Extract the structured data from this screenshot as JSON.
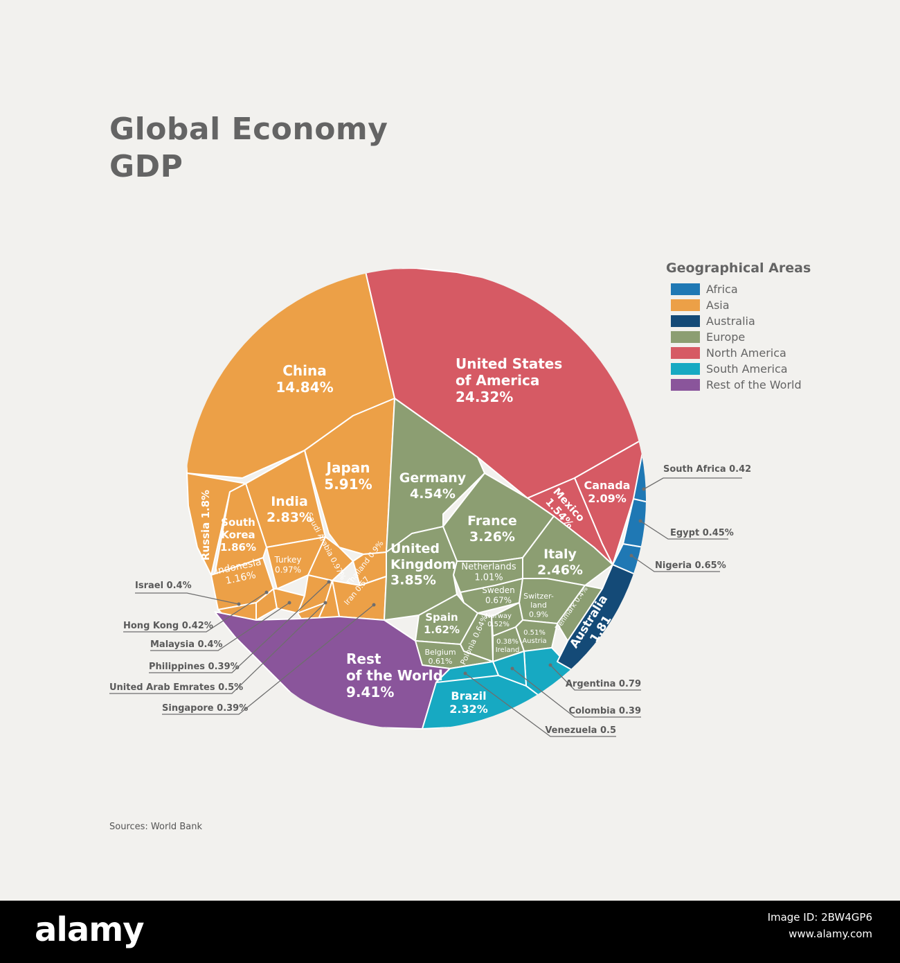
{
  "title": {
    "line1": "Global Economy",
    "line2": "GDP"
  },
  "legend": {
    "title": "Geographical Areas",
    "items": [
      {
        "label": "Africa",
        "color": "#1f78b4"
      },
      {
        "label": "Asia",
        "color": "#eca047"
      },
      {
        "label": "Australia",
        "color": "#144a77"
      },
      {
        "label": "Europe",
        "color": "#8c9e72"
      },
      {
        "label": "North America",
        "color": "#d65a64"
      },
      {
        "label": "South America",
        "color": "#17a9c2"
      },
      {
        "label": "Rest of the World",
        "color": "#8a559b"
      }
    ]
  },
  "source": "Sources: World Bank",
  "footer": {
    "logo": "alamy",
    "image_id": "Image ID: 2BW4GP6",
    "site": "www.alamy.com"
  },
  "chart_data": {
    "type": "voronoi-treemap",
    "title": "Global Economy GDP",
    "unit": "% of world GDP",
    "regions": [
      {
        "region": "North America",
        "countries": [
          {
            "name": "United States of America",
            "label": "United States of America",
            "value_text": "24.32%",
            "value": 24.32
          },
          {
            "name": "Canada",
            "label": "Canada",
            "value_text": "2.09%",
            "value": 2.09
          },
          {
            "name": "Mexico",
            "label": "Mexico",
            "value_text": "1.54%",
            "value": 1.54
          }
        ]
      },
      {
        "region": "Asia",
        "countries": [
          {
            "name": "China",
            "label": "China",
            "value_text": "14.84%",
            "value": 14.84
          },
          {
            "name": "Japan",
            "label": "Japan",
            "value_text": "5.91%",
            "value": 5.91
          },
          {
            "name": "India",
            "label": "India",
            "value_text": "2.83%",
            "value": 2.83
          },
          {
            "name": "South Korea",
            "label": "South Korea",
            "value_text": "1.86%",
            "value": 1.86
          },
          {
            "name": "Russia",
            "label": "Russia",
            "value_text": "1.8%",
            "value": 1.8
          },
          {
            "name": "Indonesia",
            "label": "Indonesia",
            "value_text": "1.16%",
            "value": 1.16
          },
          {
            "name": "Turkey",
            "label": "Turkey",
            "value_text": "0.97%",
            "value": 0.97
          },
          {
            "name": "Saudi Arabia",
            "label": "Saudi Arabia",
            "value_text": "0.97%",
            "value": 0.97
          },
          {
            "name": "Thailand",
            "label": "Thailand",
            "value_text": "0.9%",
            "value": 0.9
          },
          {
            "name": "Iran",
            "label": "Iran",
            "value_text": "0.57",
            "value": 0.57
          },
          {
            "name": "Israel",
            "label": "Israel",
            "value_text": "0.4%",
            "value": 0.4
          },
          {
            "name": "Hong Kong",
            "label": "Hong Kong",
            "value_text": "0.42%",
            "value": 0.42
          },
          {
            "name": "Malaysia",
            "label": "Malaysia",
            "value_text": "0.4%",
            "value": 0.4
          },
          {
            "name": "Philippines",
            "label": "Philippines",
            "value_text": "0.39%",
            "value": 0.39
          },
          {
            "name": "United Arab Emrates",
            "label": "United Arab Emrates",
            "value_text": "0.5%",
            "value": 0.5
          },
          {
            "name": "Singapore",
            "label": "Singapore",
            "value_text": "0.39%",
            "value": 0.39
          }
        ]
      },
      {
        "region": "Europe",
        "countries": [
          {
            "name": "Germany",
            "label": "Germany",
            "value_text": "4.54%",
            "value": 4.54
          },
          {
            "name": "United Kingdom",
            "label": "United Kingdom",
            "value_text": "3.85%",
            "value": 3.85
          },
          {
            "name": "France",
            "label": "France",
            "value_text": "3.26%",
            "value": 3.26
          },
          {
            "name": "Italy",
            "label": "Italy",
            "value_text": "2.46%",
            "value": 2.46
          },
          {
            "name": "Spain",
            "label": "Spain",
            "value_text": "1.62%",
            "value": 1.62
          },
          {
            "name": "Netherlands",
            "label": "Netherlands",
            "value_text": "1.01%",
            "value": 1.01
          },
          {
            "name": "Switzerland",
            "label": "Switzer-land",
            "value_text": "0.9%",
            "value": 0.9
          },
          {
            "name": "Sweden",
            "label": "Sweden",
            "value_text": "0.67%",
            "value": 0.67
          },
          {
            "name": "Polonia",
            "label": "Polonia",
            "value_text": "0.64%",
            "value": 0.64
          },
          {
            "name": "Belgium",
            "label": "Belgium",
            "value_text": "0.61%",
            "value": 0.61
          },
          {
            "name": "Norway",
            "label": "Norway",
            "value_text": "0.52%",
            "value": 0.52
          },
          {
            "name": "Austria",
            "label": "Austria",
            "value_text": "0.51%",
            "value": 0.51
          },
          {
            "name": "Denmark",
            "label": "Denmark",
            "value_text": "0.4%",
            "value": 0.4
          },
          {
            "name": "Ireland",
            "label": "Ireland",
            "value_text": "0.38%",
            "value": 0.38
          }
        ]
      },
      {
        "region": "Rest of the World",
        "countries": [
          {
            "name": "Rest of the World",
            "label": "Rest of the World",
            "value_text": "9.41%",
            "value": 9.41
          }
        ]
      },
      {
        "region": "South America",
        "countries": [
          {
            "name": "Brazil",
            "label": "Brazil",
            "value_text": "2.32%",
            "value": 2.32
          },
          {
            "name": "Argentina",
            "label": "Argentina",
            "value_text": "0.79",
            "value": 0.79
          },
          {
            "name": "Venezuela",
            "label": "Venezuela",
            "value_text": "0.5",
            "value": 0.5
          },
          {
            "name": "Colombia",
            "label": "Colombia",
            "value_text": "0.39",
            "value": 0.39
          }
        ]
      },
      {
        "region": "Australia",
        "countries": [
          {
            "name": "Australia",
            "label": "Australia",
            "value_text": "1.81",
            "value": 1.81
          }
        ]
      },
      {
        "region": "Africa",
        "countries": [
          {
            "name": "Nigeria",
            "label": "Nigeria",
            "value_text": "0.65%",
            "value": 0.65
          },
          {
            "name": "Egypt",
            "label": "Egypt",
            "value_text": "0.45%",
            "value": 0.45
          },
          {
            "name": "South Africa",
            "label": "South Africa",
            "value_text": "0.42",
            "value": 0.42
          }
        ]
      }
    ]
  }
}
